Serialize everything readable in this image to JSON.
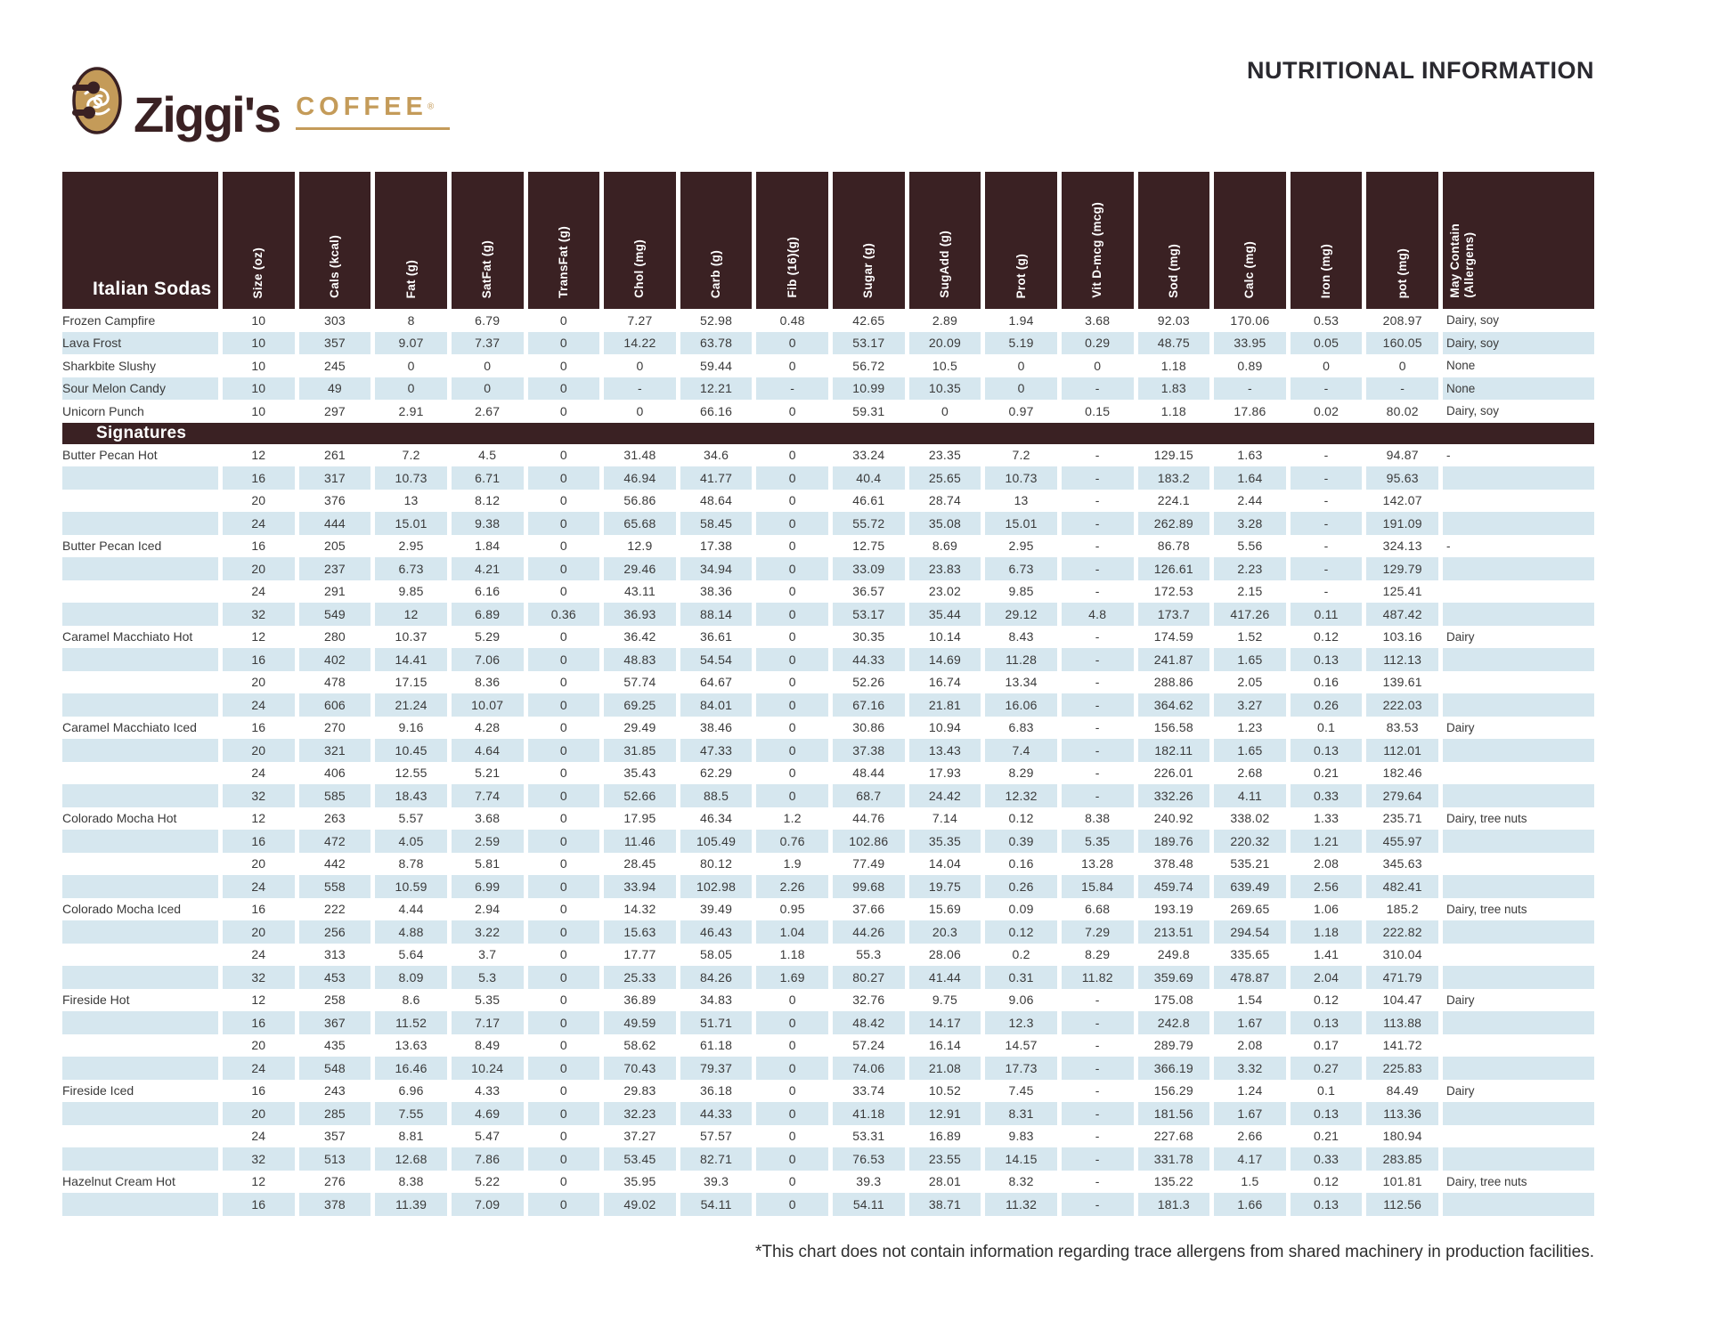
{
  "page": {
    "title": "NUTRITIONAL INFORMATION",
    "footnote": "*This chart does not contain information regarding trace allergens from shared machinery in production facilities."
  },
  "logo": {
    "brand": "Ziggi's",
    "word": "COFFEE",
    "registered": "®"
  },
  "colors": {
    "brown": "#3A2123",
    "gold": "#C49B59",
    "stripe": "#D6E7EF"
  },
  "table": {
    "first_column_header": "Italian Sodas",
    "columns": [
      "Size (oz)",
      "Cals (kcal)",
      "Fat (g)",
      "SatFat (g)",
      "TransFat (g)",
      "Chol (mg)",
      "Carb (g)",
      "Fib (16)(g)",
      "Sugar (g)",
      "SugAdd (g)",
      "Prot (g)",
      "Vit D-mcg (mcg)",
      "Sod (mg)",
      "Calc (mg)",
      "Iron (mg)",
      "pot (mg)",
      "May Contain\n(Allergens)"
    ],
    "sections": [
      {
        "header": null,
        "rows": [
          {
            "name": "Frozen Campfire",
            "values": [
              "10",
              "303",
              "8",
              "6.79",
              "0",
              "7.27",
              "52.98",
              "0.48",
              "42.65",
              "2.89",
              "1.94",
              "3.68",
              "92.03",
              "170.06",
              "0.53",
              "208.97"
            ],
            "allergens": "Dairy, soy"
          },
          {
            "name": "Lava Frost",
            "values": [
              "10",
              "357",
              "9.07",
              "7.37",
              "0",
              "14.22",
              "63.78",
              "0",
              "53.17",
              "20.09",
              "5.19",
              "0.29",
              "48.75",
              "33.95",
              "0.05",
              "160.05"
            ],
            "allergens": "Dairy, soy"
          },
          {
            "name": "Sharkbite Slushy",
            "values": [
              "10",
              "245",
              "0",
              "0",
              "0",
              "0",
              "59.44",
              "0",
              "56.72",
              "10.5",
              "0",
              "0",
              "1.18",
              "0.89",
              "0",
              "0"
            ],
            "allergens": "None"
          },
          {
            "name": "Sour Melon Candy",
            "values": [
              "10",
              "49",
              "0",
              "0",
              "0",
              "-",
              "12.21",
              "-",
              "10.99",
              "10.35",
              "0",
              "-",
              "1.83",
              "-",
              "-",
              "-"
            ],
            "allergens": "None"
          },
          {
            "name": "Unicorn Punch",
            "values": [
              "10",
              "297",
              "2.91",
              "2.67",
              "0",
              "0",
              "66.16",
              "0",
              "59.31",
              "0",
              "0.97",
              "0.15",
              "1.18",
              "17.86",
              "0.02",
              "80.02"
            ],
            "allergens": "Dairy, soy"
          }
        ]
      },
      {
        "header": "Signatures",
        "rows": [
          {
            "name": "Butter Pecan Hot",
            "values": [
              "12",
              "261",
              "7.2",
              "4.5",
              "0",
              "31.48",
              "34.6",
              "0",
              "33.24",
              "23.35",
              "7.2",
              "-",
              "129.15",
              "1.63",
              "-",
              "94.87"
            ],
            "allergens": "-"
          },
          {
            "name": "",
            "values": [
              "16",
              "317",
              "10.73",
              "6.71",
              "0",
              "46.94",
              "41.77",
              "0",
              "40.4",
              "25.65",
              "10.73",
              "-",
              "183.2",
              "1.64",
              "-",
              "95.63"
            ],
            "allergens": ""
          },
          {
            "name": "",
            "values": [
              "20",
              "376",
              "13",
              "8.12",
              "0",
              "56.86",
              "48.64",
              "0",
              "46.61",
              "28.74",
              "13",
              "-",
              "224.1",
              "2.44",
              "-",
              "142.07"
            ],
            "allergens": ""
          },
          {
            "name": "",
            "values": [
              "24",
              "444",
              "15.01",
              "9.38",
              "0",
              "65.68",
              "58.45",
              "0",
              "55.72",
              "35.08",
              "15.01",
              "-",
              "262.89",
              "3.28",
              "-",
              "191.09"
            ],
            "allergens": ""
          },
          {
            "name": "Butter Pecan Iced",
            "values": [
              "16",
              "205",
              "2.95",
              "1.84",
              "0",
              "12.9",
              "17.38",
              "0",
              "12.75",
              "8.69",
              "2.95",
              "-",
              "86.78",
              "5.56",
              "-",
              "324.13"
            ],
            "allergens": "-"
          },
          {
            "name": "",
            "values": [
              "20",
              "237",
              "6.73",
              "4.21",
              "0",
              "29.46",
              "34.94",
              "0",
              "33.09",
              "23.83",
              "6.73",
              "-",
              "126.61",
              "2.23",
              "-",
              "129.79"
            ],
            "allergens": ""
          },
          {
            "name": "",
            "values": [
              "24",
              "291",
              "9.85",
              "6.16",
              "0",
              "43.11",
              "38.36",
              "0",
              "36.57",
              "23.02",
              "9.85",
              "-",
              "172.53",
              "2.15",
              "-",
              "125.41"
            ],
            "allergens": ""
          },
          {
            "name": "",
            "values": [
              "32",
              "549",
              "12",
              "6.89",
              "0.36",
              "36.93",
              "88.14",
              "0",
              "53.17",
              "35.44",
              "29.12",
              "4.8",
              "173.7",
              "417.26",
              "0.11",
              "487.42"
            ],
            "allergens": ""
          },
          {
            "name": "Caramel Macchiato Hot",
            "values": [
              "12",
              "280",
              "10.37",
              "5.29",
              "0",
              "36.42",
              "36.61",
              "0",
              "30.35",
              "10.14",
              "8.43",
              "-",
              "174.59",
              "1.52",
              "0.12",
              "103.16"
            ],
            "allergens": "Dairy"
          },
          {
            "name": "",
            "values": [
              "16",
              "402",
              "14.41",
              "7.06",
              "0",
              "48.83",
              "54.54",
              "0",
              "44.33",
              "14.69",
              "11.28",
              "-",
              "241.87",
              "1.65",
              "0.13",
              "112.13"
            ],
            "allergens": ""
          },
          {
            "name": "",
            "values": [
              "20",
              "478",
              "17.15",
              "8.36",
              "0",
              "57.74",
              "64.67",
              "0",
              "52.26",
              "16.74",
              "13.34",
              "-",
              "288.86",
              "2.05",
              "0.16",
              "139.61"
            ],
            "allergens": ""
          },
          {
            "name": "",
            "values": [
              "24",
              "606",
              "21.24",
              "10.07",
              "0",
              "69.25",
              "84.01",
              "0",
              "67.16",
              "21.81",
              "16.06",
              "-",
              "364.62",
              "3.27",
              "0.26",
              "222.03"
            ],
            "allergens": ""
          },
          {
            "name": "Caramel Macchiato Iced",
            "values": [
              "16",
              "270",
              "9.16",
              "4.28",
              "0",
              "29.49",
              "38.46",
              "0",
              "30.86",
              "10.94",
              "6.83",
              "-",
              "156.58",
              "1.23",
              "0.1",
              "83.53"
            ],
            "allergens": "Dairy"
          },
          {
            "name": "",
            "values": [
              "20",
              "321",
              "10.45",
              "4.64",
              "0",
              "31.85",
              "47.33",
              "0",
              "37.38",
              "13.43",
              "7.4",
              "-",
              "182.11",
              "1.65",
              "0.13",
              "112.01"
            ],
            "allergens": ""
          },
          {
            "name": "",
            "values": [
              "24",
              "406",
              "12.55",
              "5.21",
              "0",
              "35.43",
              "62.29",
              "0",
              "48.44",
              "17.93",
              "8.29",
              "-",
              "226.01",
              "2.68",
              "0.21",
              "182.46"
            ],
            "allergens": ""
          },
          {
            "name": "",
            "values": [
              "32",
              "585",
              "18.43",
              "7.74",
              "0",
              "52.66",
              "88.5",
              "0",
              "68.7",
              "24.42",
              "12.32",
              "-",
              "332.26",
              "4.11",
              "0.33",
              "279.64"
            ],
            "allergens": ""
          },
          {
            "name": "Colorado Mocha Hot",
            "values": [
              "12",
              "263",
              "5.57",
              "3.68",
              "0",
              "17.95",
              "46.34",
              "1.2",
              "44.76",
              "7.14",
              "0.12",
              "8.38",
              "240.92",
              "338.02",
              "1.33",
              "235.71"
            ],
            "allergens": "Dairy, tree nuts"
          },
          {
            "name": "",
            "values": [
              "16",
              "472",
              "4.05",
              "2.59",
              "0",
              "11.46",
              "105.49",
              "0.76",
              "102.86",
              "35.35",
              "0.39",
              "5.35",
              "189.76",
              "220.32",
              "1.21",
              "455.97"
            ],
            "allergens": ""
          },
          {
            "name": "",
            "values": [
              "20",
              "442",
              "8.78",
              "5.81",
              "0",
              "28.45",
              "80.12",
              "1.9",
              "77.49",
              "14.04",
              "0.16",
              "13.28",
              "378.48",
              "535.21",
              "2.08",
              "345.63"
            ],
            "allergens": ""
          },
          {
            "name": "",
            "values": [
              "24",
              "558",
              "10.59",
              "6.99",
              "0",
              "33.94",
              "102.98",
              "2.26",
              "99.68",
              "19.75",
              "0.26",
              "15.84",
              "459.74",
              "639.49",
              "2.56",
              "482.41"
            ],
            "allergens": ""
          },
          {
            "name": "Colorado Mocha Iced",
            "values": [
              "16",
              "222",
              "4.44",
              "2.94",
              "0",
              "14.32",
              "39.49",
              "0.95",
              "37.66",
              "15.69",
              "0.09",
              "6.68",
              "193.19",
              "269.65",
              "1.06",
              "185.2"
            ],
            "allergens": "Dairy, tree nuts"
          },
          {
            "name": "",
            "values": [
              "20",
              "256",
              "4.88",
              "3.22",
              "0",
              "15.63",
              "46.43",
              "1.04",
              "44.26",
              "20.3",
              "0.12",
              "7.29",
              "213.51",
              "294.54",
              "1.18",
              "222.82"
            ],
            "allergens": ""
          },
          {
            "name": "",
            "values": [
              "24",
              "313",
              "5.64",
              "3.7",
              "0",
              "17.77",
              "58.05",
              "1.18",
              "55.3",
              "28.06",
              "0.2",
              "8.29",
              "249.8",
              "335.65",
              "1.41",
              "310.04"
            ],
            "allergens": ""
          },
          {
            "name": "",
            "values": [
              "32",
              "453",
              "8.09",
              "5.3",
              "0",
              "25.33",
              "84.26",
              "1.69",
              "80.27",
              "41.44",
              "0.31",
              "11.82",
              "359.69",
              "478.87",
              "2.04",
              "471.79"
            ],
            "allergens": ""
          },
          {
            "name": "Fireside Hot",
            "values": [
              "12",
              "258",
              "8.6",
              "5.35",
              "0",
              "36.89",
              "34.83",
              "0",
              "32.76",
              "9.75",
              "9.06",
              "-",
              "175.08",
              "1.54",
              "0.12",
              "104.47"
            ],
            "allergens": "Dairy"
          },
          {
            "name": "",
            "values": [
              "16",
              "367",
              "11.52",
              "7.17",
              "0",
              "49.59",
              "51.71",
              "0",
              "48.42",
              "14.17",
              "12.3",
              "-",
              "242.8",
              "1.67",
              "0.13",
              "113.88"
            ],
            "allergens": ""
          },
          {
            "name": "",
            "values": [
              "20",
              "435",
              "13.63",
              "8.49",
              "0",
              "58.62",
              "61.18",
              "0",
              "57.24",
              "16.14",
              "14.57",
              "-",
              "289.79",
              "2.08",
              "0.17",
              "141.72"
            ],
            "allergens": ""
          },
          {
            "name": "",
            "values": [
              "24",
              "548",
              "16.46",
              "10.24",
              "0",
              "70.43",
              "79.37",
              "0",
              "74.06",
              "21.08",
              "17.73",
              "-",
              "366.19",
              "3.32",
              "0.27",
              "225.83"
            ],
            "allergens": ""
          },
          {
            "name": "Fireside Iced",
            "values": [
              "16",
              "243",
              "6.96",
              "4.33",
              "0",
              "29.83",
              "36.18",
              "0",
              "33.74",
              "10.52",
              "7.45",
              "-",
              "156.29",
              "1.24",
              "0.1",
              "84.49"
            ],
            "allergens": "Dairy"
          },
          {
            "name": "",
            "values": [
              "20",
              "285",
              "7.55",
              "4.69",
              "0",
              "32.23",
              "44.33",
              "0",
              "41.18",
              "12.91",
              "8.31",
              "-",
              "181.56",
              "1.67",
              "0.13",
              "113.36"
            ],
            "allergens": ""
          },
          {
            "name": "",
            "values": [
              "24",
              "357",
              "8.81",
              "5.47",
              "0",
              "37.27",
              "57.57",
              "0",
              "53.31",
              "16.89",
              "9.83",
              "-",
              "227.68",
              "2.66",
              "0.21",
              "180.94"
            ],
            "allergens": ""
          },
          {
            "name": "",
            "values": [
              "32",
              "513",
              "12.68",
              "7.86",
              "0",
              "53.45",
              "82.71",
              "0",
              "76.53",
              "23.55",
              "14.15",
              "-",
              "331.78",
              "4.17",
              "0.33",
              "283.85"
            ],
            "allergens": ""
          },
          {
            "name": "Hazelnut Cream Hot",
            "values": [
              "12",
              "276",
              "8.38",
              "5.22",
              "0",
              "35.95",
              "39.3",
              "0",
              "39.3",
              "28.01",
              "8.32",
              "-",
              "135.22",
              "1.5",
              "0.12",
              "101.81"
            ],
            "allergens": "Dairy, tree nuts"
          },
          {
            "name": "",
            "values": [
              "16",
              "378",
              "11.39",
              "7.09",
              "0",
              "49.02",
              "54.11",
              "0",
              "54.11",
              "38.71",
              "11.32",
              "-",
              "181.3",
              "1.66",
              "0.13",
              "112.56"
            ],
            "allergens": ""
          }
        ]
      }
    ]
  }
}
